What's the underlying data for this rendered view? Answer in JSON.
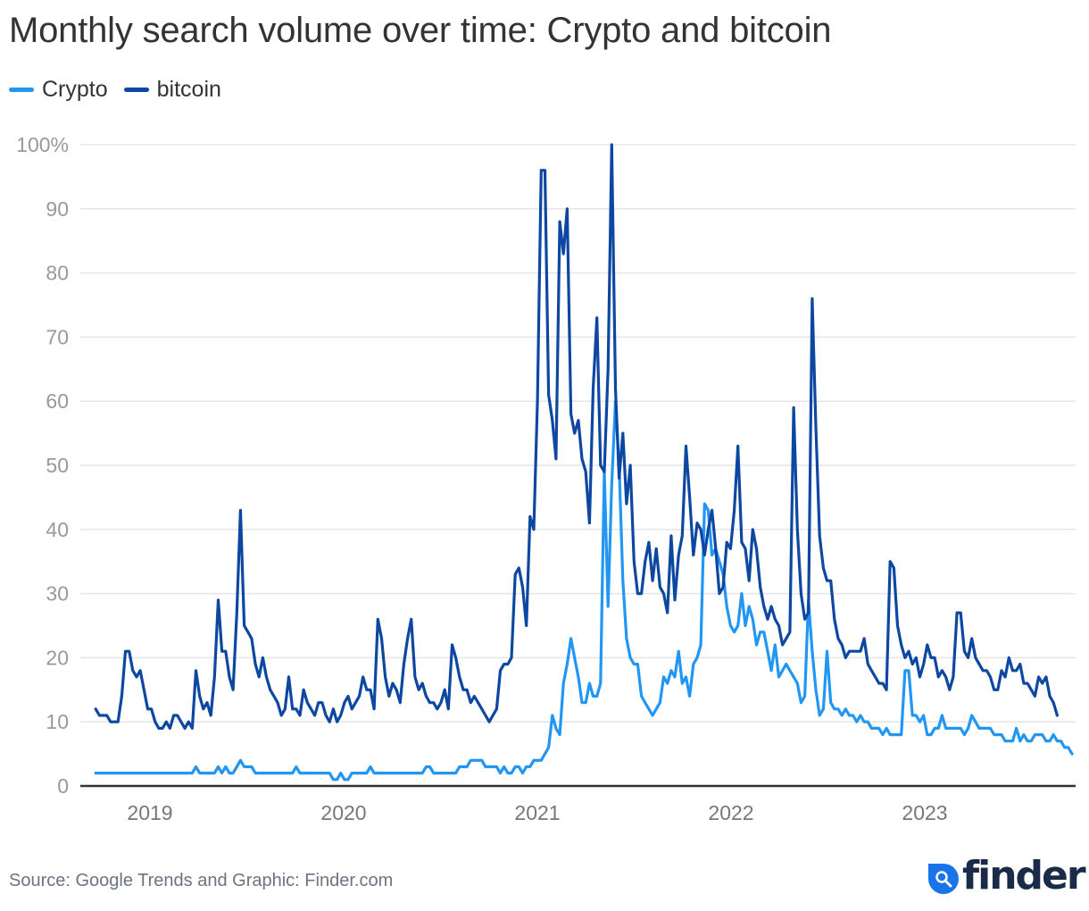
{
  "chart_data": {
    "type": "line",
    "title": "Monthly search volume over time: Crypto and bitcoin",
    "xlabel": "",
    "ylabel": "",
    "ylim": [
      0,
      100
    ],
    "y_ticks": [
      "0",
      "10",
      "20",
      "30",
      "40",
      "50",
      "60",
      "70",
      "80",
      "90",
      "100%"
    ],
    "y_tick_values": [
      0,
      10,
      20,
      30,
      40,
      50,
      60,
      70,
      80,
      90,
      100
    ],
    "x_ticks": [
      "2019",
      "2020",
      "2021",
      "2022",
      "2023"
    ],
    "x_tick_values": [
      2019.0,
      2020.0,
      2021.0,
      2022.0,
      2023.0
    ],
    "xlim": [
      2018.72,
      2023.78
    ],
    "x_start": 2018.72,
    "x_step_weeks": 1,
    "grid": true,
    "legend_position": "top-left",
    "series": [
      {
        "name": "Crypto",
        "color": "#2196f3",
        "values": [
          2,
          2,
          2,
          2,
          2,
          2,
          2,
          2,
          2,
          2,
          2,
          2,
          2,
          2,
          2,
          2,
          2,
          2,
          2,
          2,
          2,
          2,
          2,
          2,
          2,
          2,
          2,
          3,
          2,
          2,
          2,
          2,
          2,
          3,
          2,
          3,
          2,
          2,
          3,
          4,
          3,
          3,
          3,
          2,
          2,
          2,
          2,
          2,
          2,
          2,
          2,
          2,
          2,
          2,
          3,
          2,
          2,
          2,
          2,
          2,
          2,
          2,
          2,
          2,
          1,
          1,
          2,
          1,
          1,
          2,
          2,
          2,
          2,
          2,
          3,
          2,
          2,
          2,
          2,
          2,
          2,
          2,
          2,
          2,
          2,
          2,
          2,
          2,
          2,
          3,
          3,
          2,
          2,
          2,
          2,
          2,
          2,
          2,
          3,
          3,
          3,
          4,
          4,
          4,
          4,
          3,
          3,
          3,
          3,
          2,
          3,
          2,
          2,
          3,
          3,
          2,
          3,
          3,
          4,
          4,
          4,
          5,
          6,
          11,
          9,
          8,
          16,
          19,
          23,
          20,
          17,
          13,
          13,
          16,
          14,
          14,
          16,
          49,
          28,
          47,
          60,
          50,
          32,
          23,
          20,
          19,
          19,
          14,
          13,
          12,
          11,
          12,
          13,
          17,
          16,
          18,
          17,
          21,
          16,
          17,
          14,
          19,
          20,
          22,
          44,
          43,
          36,
          37,
          35,
          33,
          28,
          25,
          24,
          25,
          30,
          25,
          28,
          26,
          22,
          24,
          24,
          21,
          18,
          22,
          17,
          18,
          19,
          18,
          17,
          16,
          13,
          14,
          29,
          21,
          15,
          11,
          12,
          21,
          13,
          12,
          12,
          11,
          12,
          11,
          11,
          10,
          11,
          10,
          10,
          9,
          9,
          9,
          8,
          9,
          8,
          8,
          8,
          8,
          18,
          18,
          11,
          11,
          10,
          11,
          8,
          8,
          9,
          9,
          11,
          9,
          9,
          9,
          9,
          9,
          8,
          9,
          11,
          10,
          9,
          9,
          9,
          9,
          8,
          8,
          8,
          7,
          7,
          7,
          9,
          7,
          8,
          7,
          7,
          8,
          8,
          8,
          7,
          7,
          8,
          7,
          7,
          6,
          6,
          5
        ]
      },
      {
        "name": "bitcoin",
        "color": "#0d47a1",
        "values": [
          12,
          11,
          11,
          11,
          10,
          10,
          10,
          14,
          21,
          21,
          18,
          17,
          18,
          15,
          12,
          12,
          10,
          9,
          9,
          10,
          9,
          11,
          11,
          10,
          9,
          10,
          9,
          18,
          14,
          12,
          13,
          11,
          17,
          29,
          21,
          21,
          17,
          15,
          27,
          43,
          25,
          24,
          23,
          19,
          17,
          20,
          17,
          15,
          14,
          13,
          11,
          12,
          17,
          12,
          12,
          11,
          15,
          13,
          12,
          11,
          13,
          13,
          11,
          10,
          12,
          10,
          11,
          13,
          14,
          12,
          13,
          14,
          17,
          15,
          15,
          12,
          26,
          23,
          17,
          14,
          16,
          15,
          13,
          19,
          23,
          26,
          17,
          15,
          16,
          14,
          13,
          13,
          12,
          13,
          15,
          12,
          22,
          20,
          17,
          15,
          15,
          13,
          14,
          13,
          12,
          11,
          10,
          11,
          12,
          18,
          19,
          19,
          20,
          33,
          34,
          31,
          25,
          42,
          40,
          60,
          96,
          96,
          61,
          57,
          51,
          88,
          83,
          90,
          58,
          55,
          57,
          51,
          49,
          41,
          62,
          73,
          50,
          49,
          65,
          100,
          62,
          48,
          55,
          44,
          50,
          35,
          30,
          30,
          35,
          38,
          32,
          37,
          31,
          30,
          27,
          39,
          29,
          36,
          39,
          53,
          45,
          36,
          41,
          40,
          36,
          40,
          43,
          37,
          30,
          31,
          38,
          37,
          43,
          53,
          38,
          37,
          32,
          40,
          37,
          31,
          28,
          26,
          28,
          26,
          25,
          22,
          23,
          24,
          59,
          40,
          30,
          26,
          27,
          76,
          56,
          39,
          34,
          32,
          32,
          26,
          23,
          22,
          20,
          21,
          21,
          21,
          21,
          23,
          19,
          18,
          17,
          16,
          16,
          15,
          35,
          34,
          25,
          22,
          20,
          21,
          19,
          20,
          17,
          19,
          22,
          20,
          20,
          17,
          18,
          17,
          15,
          17,
          27,
          27,
          21,
          20,
          23,
          20,
          19,
          18,
          18,
          17,
          15,
          15,
          18,
          17,
          20,
          18,
          18,
          19,
          16,
          16,
          15,
          14,
          17,
          16,
          17,
          14,
          13,
          11
        ]
      }
    ]
  },
  "header": {
    "title": "Monthly search volume over time: Crypto and bitcoin"
  },
  "legend": {
    "items": [
      {
        "label": "Crypto",
        "color": "#2196f3"
      },
      {
        "label": "bitcoin",
        "color": "#0d47a1"
      }
    ]
  },
  "footer": {
    "source": "Source: Google Trends and Graphic: Finder.com",
    "logo_text": "finder",
    "logo_color": "#1a73e8"
  }
}
